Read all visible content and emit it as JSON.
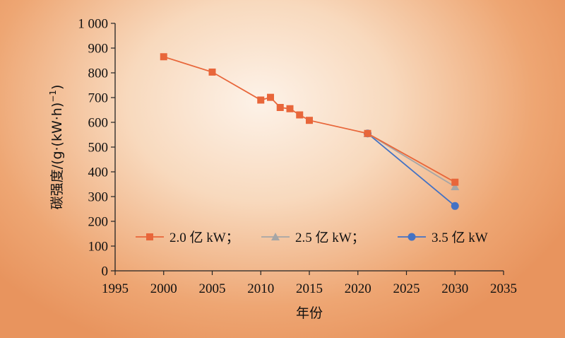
{
  "chart_data": {
    "type": "line",
    "xlabel": "年份",
    "ylabel": "碳强度/(g·(kW·h)",
    "ylabel_sup": "−1",
    "ylabel_close": ")",
    "xlim": [
      1995,
      2035
    ],
    "ylim": [
      0,
      1000
    ],
    "x_ticks": [
      {
        "value": 1995,
        "label": "1995"
      },
      {
        "value": 2000,
        "label": "2000"
      },
      {
        "value": 2005,
        "label": "2005"
      },
      {
        "value": 2010,
        "label": "2010"
      },
      {
        "value": 2015,
        "label": "2015"
      },
      {
        "value": 2020,
        "label": "2020"
      },
      {
        "value": 2025,
        "label": "2025"
      },
      {
        "value": 2030,
        "label": "2030"
      },
      {
        "value": 2035,
        "label": "2035"
      }
    ],
    "y_ticks": [
      {
        "value": 0,
        "label": "0"
      },
      {
        "value": 100,
        "label": "100"
      },
      {
        "value": 200,
        "label": "200"
      },
      {
        "value": 300,
        "label": "300"
      },
      {
        "value": 400,
        "label": "400"
      },
      {
        "value": 500,
        "label": "500"
      },
      {
        "value": 600,
        "label": "600"
      },
      {
        "value": 700,
        "label": "700"
      },
      {
        "value": 800,
        "label": "800"
      },
      {
        "value": 900,
        "label": "900"
      },
      {
        "value": 1000,
        "label": "1 000"
      }
    ],
    "grid": false,
    "legend": "bottom-center",
    "series": [
      {
        "name": "2.0 亿 kW；",
        "color": "#e8663a",
        "marker": "square",
        "points": [
          [
            2000,
            865
          ],
          [
            2005,
            803
          ],
          [
            2010,
            690
          ],
          [
            2011,
            701
          ],
          [
            2012,
            660
          ],
          [
            2013,
            655
          ],
          [
            2014,
            630
          ],
          [
            2015,
            608
          ],
          [
            2021,
            555
          ],
          [
            2030,
            358
          ]
        ]
      },
      {
        "name": "2.5 亿 kW；",
        "color": "#a6a6a6",
        "marker": "triangle",
        "points": [
          [
            2021,
            555
          ],
          [
            2030,
            340
          ]
        ]
      },
      {
        "name": "3.5 亿 kW",
        "color": "#4472c4",
        "marker": "circle",
        "points": [
          [
            2021,
            555
          ],
          [
            2030,
            262
          ]
        ]
      }
    ]
  }
}
